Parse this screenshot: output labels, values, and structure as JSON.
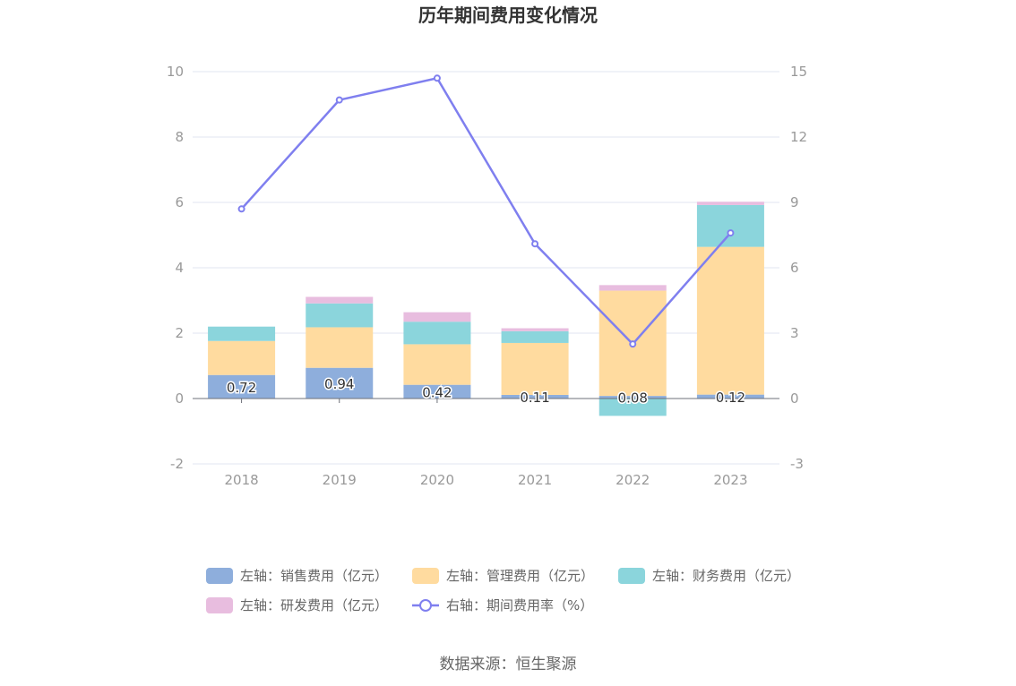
{
  "chart_data": {
    "type": "bar",
    "title": "历年期间费用变化情况",
    "categories": [
      "2018",
      "2019",
      "2020",
      "2021",
      "2022",
      "2023"
    ],
    "left_axis": {
      "ylim": [
        -2,
        10
      ],
      "ticks": [
        "-2",
        "0",
        "2",
        "4",
        "6",
        "8",
        "10"
      ]
    },
    "right_axis": {
      "ylim": [
        -3,
        15
      ],
      "ticks": [
        "-3",
        "0",
        "3",
        "6",
        "9",
        "12",
        "15"
      ]
    },
    "grid": true,
    "stacked": true,
    "legend_position": "bottom",
    "series": [
      {
        "name": "左轴：销售费用（亿元）",
        "type": "bar",
        "axis": "left",
        "color": "#8eaedc",
        "values": [
          0.72,
          0.94,
          0.42,
          0.11,
          0.08,
          0.12
        ],
        "labels": [
          "0.72",
          "0.94",
          "0.42",
          "0.11",
          "0.08",
          "0.12"
        ]
      },
      {
        "name": "左轴：管理费用（亿元）",
        "type": "bar",
        "axis": "left",
        "color": "#ffdb9f",
        "values": [
          1.04,
          1.24,
          1.24,
          1.59,
          3.22,
          4.52
        ]
      },
      {
        "name": "左轴：财务费用（亿元）",
        "type": "bar",
        "axis": "left",
        "color": "#8bd5dc",
        "values": [
          0.44,
          0.73,
          0.69,
          0.36,
          -0.53,
          1.28
        ]
      },
      {
        "name": "左轴：研发费用（亿元）",
        "type": "bar",
        "axis": "left",
        "color": "#e8bddf",
        "values": [
          0.0,
          0.2,
          0.29,
          0.09,
          0.17,
          0.1
        ]
      },
      {
        "name": "右轴：期间费用率（%）",
        "type": "line",
        "axis": "right",
        "color": "#7f7fef",
        "values": [
          8.7,
          13.7,
          14.7,
          7.1,
          2.5,
          7.6
        ]
      }
    ],
    "source": "数据来源：恒生聚源"
  }
}
